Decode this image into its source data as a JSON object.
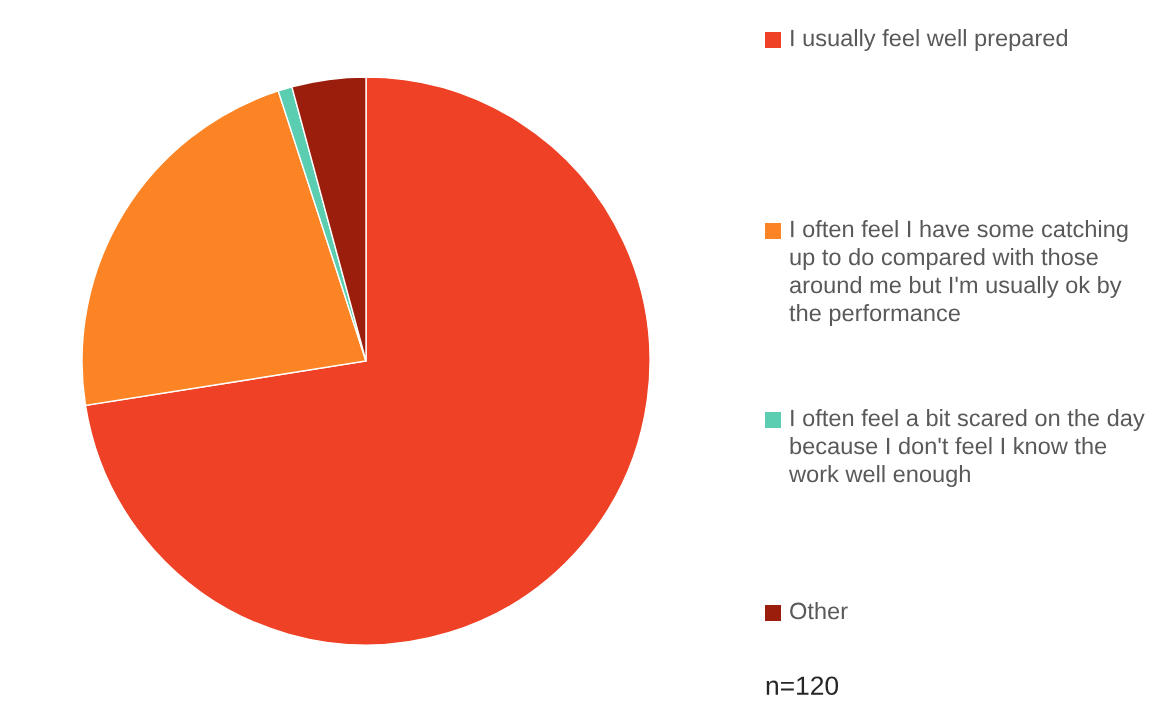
{
  "chart_data": {
    "type": "pie",
    "categories": [
      "I usually feel well prepared",
      "I often feel I have some catching up to do compared with those around me but I'm usually ok by the performance",
      "I often feel a bit scared on the day because I don't feel I know the work well enough",
      "Other"
    ],
    "values": [
      72.5,
      22.5,
      0.8,
      4.2
    ],
    "colors": [
      "#ee4125",
      "#fd8424",
      "#5bcdb0",
      "#9b1e0c"
    ],
    "legend": "right",
    "annotations": [
      "n=120"
    ]
  }
}
